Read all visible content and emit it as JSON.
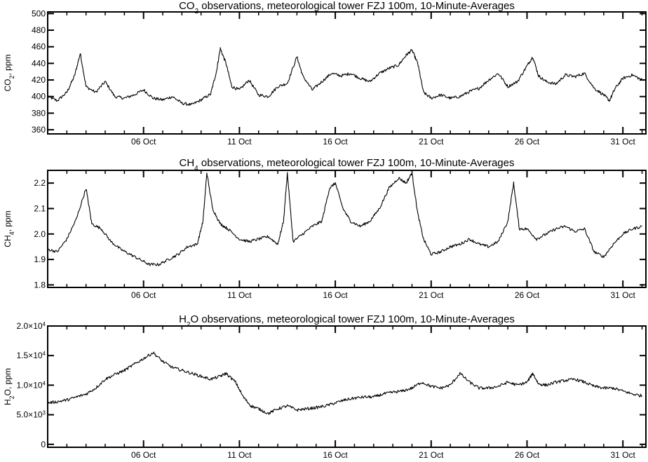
{
  "chart_data": [
    {
      "type": "line",
      "title_main": "CO",
      "title_sub": "2",
      "title_rest": " observations, meteorological tower FZJ 100m, 10-Minute-Averages",
      "ylabel_main": "CO",
      "ylabel_sub": "2",
      "ylabel_rest": ", ppm",
      "ylim": [
        355,
        502
      ],
      "yticks": [
        {
          "value": 360,
          "label": "360"
        },
        {
          "value": 380,
          "label": "380"
        },
        {
          "value": 400,
          "label": "400"
        },
        {
          "value": 420,
          "label": "420"
        },
        {
          "value": 440,
          "label": "440"
        },
        {
          "value": 460,
          "label": "460"
        },
        {
          "value": 480,
          "label": "480"
        },
        {
          "value": 500,
          "label": "500"
        }
      ],
      "series": [
        {
          "values": [
            [
              1,
              400
            ],
            [
              1.5,
              395
            ],
            [
              2,
              405
            ],
            [
              2.4,
              425
            ],
            [
              2.7,
              452
            ],
            [
              3,
              412
            ],
            [
              3.5,
              405
            ],
            [
              4,
              418
            ],
            [
              4.5,
              400
            ],
            [
              5,
              398
            ],
            [
              5.5,
              402
            ],
            [
              6,
              408
            ],
            [
              6.5,
              398
            ],
            [
              7,
              396
            ],
            [
              7.5,
              400
            ],
            [
              8,
              392
            ],
            [
              8.5,
              390
            ],
            [
              9,
              396
            ],
            [
              9.5,
              403
            ],
            [
              9.8,
              430
            ],
            [
              10,
              458
            ],
            [
              10.3,
              440
            ],
            [
              10.6,
              412
            ],
            [
              11,
              408
            ],
            [
              11.5,
              420
            ],
            [
              12,
              402
            ],
            [
              12.5,
              400
            ],
            [
              13,
              412
            ],
            [
              13.5,
              416
            ],
            [
              14,
              448
            ],
            [
              14.3,
              425
            ],
            [
              14.8,
              408
            ],
            [
              15.3,
              418
            ],
            [
              15.8,
              428
            ],
            [
              16.3,
              425
            ],
            [
              16.8,
              428
            ],
            [
              17.3,
              422
            ],
            [
              17.8,
              418
            ],
            [
              18.3,
              428
            ],
            [
              18.8,
              434
            ],
            [
              19.3,
              438
            ],
            [
              19.7,
              450
            ],
            [
              20,
              456
            ],
            [
              20.3,
              440
            ],
            [
              20.6,
              405
            ],
            [
              21,
              398
            ],
            [
              21.5,
              402
            ],
            [
              22,
              398
            ],
            [
              22.5,
              400
            ],
            [
              23,
              406
            ],
            [
              23.5,
              410
            ],
            [
              24,
              420
            ],
            [
              24.5,
              428
            ],
            [
              25,
              412
            ],
            [
              25.5,
              418
            ],
            [
              26,
              437
            ],
            [
              26.3,
              448
            ],
            [
              26.6,
              425
            ],
            [
              27,
              418
            ],
            [
              27.5,
              415
            ],
            [
              28,
              426
            ],
            [
              28.5,
              424
            ],
            [
              29,
              428
            ],
            [
              29.5,
              410
            ],
            [
              30,
              402
            ],
            [
              30.3,
              395
            ],
            [
              30.6,
              410
            ],
            [
              31,
              422
            ],
            [
              31.5,
              426
            ],
            [
              32,
              420
            ]
          ]
        }
      ]
    },
    {
      "type": "line",
      "title_main": "CH",
      "title_sub": "4",
      "title_rest": " observations, meteorological tower FZJ 100m, 10-Minute-Averages",
      "ylabel_main": "CH",
      "ylabel_sub": "4",
      "ylabel_rest": ", ppm",
      "ylim": [
        1.79,
        2.25
      ],
      "yticks": [
        {
          "value": 1.8,
          "label": "1.8"
        },
        {
          "value": 1.9,
          "label": "1.9"
        },
        {
          "value": 2.0,
          "label": "2.0"
        },
        {
          "value": 2.1,
          "label": "2.1"
        },
        {
          "value": 2.2,
          "label": "2.2"
        }
      ],
      "series": [
        {
          "values": [
            [
              1,
              1.94
            ],
            [
              1.5,
              1.93
            ],
            [
              2,
              1.98
            ],
            [
              2.5,
              2.06
            ],
            [
              3,
              2.18
            ],
            [
              3.3,
              2.04
            ],
            [
              3.8,
              2.02
            ],
            [
              4.3,
              1.97
            ],
            [
              4.8,
              1.94
            ],
            [
              5.3,
              1.92
            ],
            [
              5.8,
              1.9
            ],
            [
              6.3,
              1.88
            ],
            [
              6.8,
              1.88
            ],
            [
              7.3,
              1.9
            ],
            [
              7.8,
              1.92
            ],
            [
              8.3,
              1.95
            ],
            [
              8.8,
              1.96
            ],
            [
              9.1,
              2.05
            ],
            [
              9.3,
              2.24
            ],
            [
              9.6,
              2.1
            ],
            [
              10,
              2.04
            ],
            [
              10.4,
              2.02
            ],
            [
              11,
              1.98
            ],
            [
              11.5,
              1.97
            ],
            [
              12,
              1.98
            ],
            [
              12.5,
              1.99
            ],
            [
              13,
              1.96
            ],
            [
              13.3,
              2.05
            ],
            [
              13.5,
              2.24
            ],
            [
              13.8,
              1.97
            ],
            [
              14.3,
              2.0
            ],
            [
              14.8,
              2.03
            ],
            [
              15.3,
              2.05
            ],
            [
              15.7,
              2.18
            ],
            [
              16,
              2.2
            ],
            [
              16.4,
              2.1
            ],
            [
              16.8,
              2.05
            ],
            [
              17.3,
              2.03
            ],
            [
              17.8,
              2.05
            ],
            [
              18.3,
              2.1
            ],
            [
              18.8,
              2.18
            ],
            [
              19.3,
              2.22
            ],
            [
              19.7,
              2.2
            ],
            [
              20,
              2.24
            ],
            [
              20.3,
              2.08
            ],
            [
              20.6,
              1.98
            ],
            [
              21,
              1.92
            ],
            [
              21.5,
              1.93
            ],
            [
              22,
              1.95
            ],
            [
              22.5,
              1.96
            ],
            [
              23,
              1.98
            ],
            [
              23.5,
              1.96
            ],
            [
              24,
              1.95
            ],
            [
              24.5,
              1.97
            ],
            [
              25,
              2.05
            ],
            [
              25.3,
              2.2
            ],
            [
              25.6,
              2.02
            ],
            [
              26,
              2.02
            ],
            [
              26.5,
              1.98
            ],
            [
              27,
              2.0
            ],
            [
              27.5,
              2.02
            ],
            [
              28,
              2.03
            ],
            [
              28.5,
              2.01
            ],
            [
              29,
              2.02
            ],
            [
              29.5,
              1.93
            ],
            [
              30,
              1.91
            ],
            [
              30.5,
              1.96
            ],
            [
              31,
              2.0
            ],
            [
              31.5,
              2.02
            ],
            [
              32,
              2.03
            ]
          ]
        }
      ]
    },
    {
      "type": "line",
      "title_main": "H",
      "title_sub": "2",
      "title_rest": "O observations, meteorological tower FZJ 100m, 10-Minute-Averages",
      "ylabel_main": "H",
      "ylabel_sub": "2",
      "ylabel_rest": "O, ppm",
      "ylim": [
        -500,
        20000
      ],
      "yticks": [
        {
          "value": 0,
          "label": "0",
          "sup": ""
        },
        {
          "value": 5000,
          "label": "5.0×10",
          "sup": "3"
        },
        {
          "value": 10000,
          "label": "1.0×10",
          "sup": "4"
        },
        {
          "value": 15000,
          "label": "1.5×10",
          "sup": "4"
        },
        {
          "value": 20000,
          "label": "2.0×10",
          "sup": "4"
        }
      ],
      "series": [
        {
          "values": [
            [
              1,
              7000
            ],
            [
              1.5,
              7200
            ],
            [
              2,
              7500
            ],
            [
              2.5,
              8000
            ],
            [
              3,
              8500
            ],
            [
              3.5,
              9500
            ],
            [
              4,
              11000
            ],
            [
              4.5,
              11800
            ],
            [
              5,
              12500
            ],
            [
              5.5,
              13500
            ],
            [
              6,
              14500
            ],
            [
              6.5,
              15500
            ],
            [
              7,
              14000
            ],
            [
              7.5,
              13000
            ],
            [
              8,
              12500
            ],
            [
              8.5,
              12000
            ],
            [
              9,
              11500
            ],
            [
              9.5,
              11000
            ],
            [
              10,
              11500
            ],
            [
              10.3,
              12000
            ],
            [
              10.8,
              10500
            ],
            [
              11.2,
              8000
            ],
            [
              11.6,
              6500
            ],
            [
              12,
              6000
            ],
            [
              12.5,
              5200
            ],
            [
              13,
              6000
            ],
            [
              13.5,
              6500
            ],
            [
              14,
              5800
            ],
            [
              14.5,
              6000
            ],
            [
              15,
              6200
            ],
            [
              15.5,
              6500
            ],
            [
              16,
              7000
            ],
            [
              16.5,
              7500
            ],
            [
              17,
              7800
            ],
            [
              17.5,
              8000
            ],
            [
              18,
              8000
            ],
            [
              18.5,
              8500
            ],
            [
              19,
              8800
            ],
            [
              19.5,
              9000
            ],
            [
              20,
              9500
            ],
            [
              20.5,
              10500
            ],
            [
              21,
              9800
            ],
            [
              21.5,
              9500
            ],
            [
              22,
              10000
            ],
            [
              22.5,
              12000
            ],
            [
              23,
              10500
            ],
            [
              23.5,
              9500
            ],
            [
              24,
              9500
            ],
            [
              24.5,
              9800
            ],
            [
              25,
              10500
            ],
            [
              25.5,
              10000
            ],
            [
              26,
              10500
            ],
            [
              26.3,
              12000
            ],
            [
              26.6,
              10200
            ],
            [
              27,
              10000
            ],
            [
              27.5,
              10500
            ],
            [
              28,
              10800
            ],
            [
              28.5,
              11000
            ],
            [
              29,
              10500
            ],
            [
              29.5,
              9800
            ],
            [
              30,
              9500
            ],
            [
              30.5,
              9500
            ],
            [
              31,
              9000
            ],
            [
              31.5,
              8500
            ],
            [
              32,
              8200
            ]
          ]
        }
      ]
    }
  ],
  "x_axis": {
    "xlim": [
      1,
      32.2
    ],
    "ticks": [
      {
        "value": 6,
        "label": "06 Oct"
      },
      {
        "value": 11,
        "label": "11 Oct"
      },
      {
        "value": 16,
        "label": "16 Oct"
      },
      {
        "value": 21,
        "label": "21 Oct"
      },
      {
        "value": 26,
        "label": "26 Oct"
      },
      {
        "value": 31,
        "label": "31 Oct"
      }
    ]
  }
}
